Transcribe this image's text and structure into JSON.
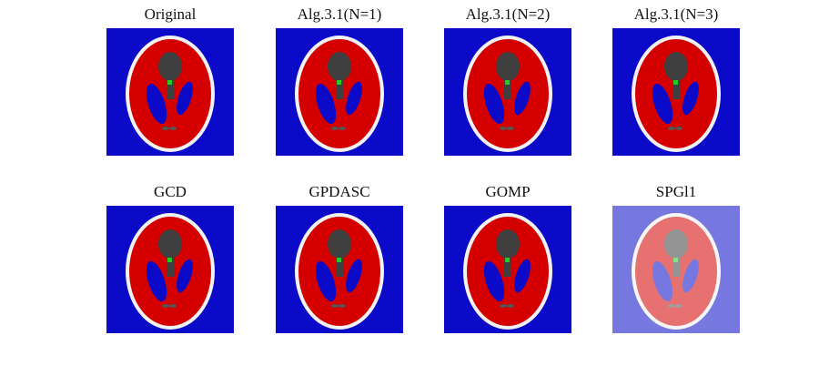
{
  "panels": [
    {
      "title": "Original"
    },
    {
      "title": "Alg.3.1(N=1)"
    },
    {
      "title": "Alg.3.1(N=2)"
    },
    {
      "title": "Alg.3.1(N=3)"
    },
    {
      "title": "GCD"
    },
    {
      "title": "GPDASC"
    },
    {
      "title": "GOMP"
    },
    {
      "title": "SPGl1",
      "noisy": true
    }
  ]
}
